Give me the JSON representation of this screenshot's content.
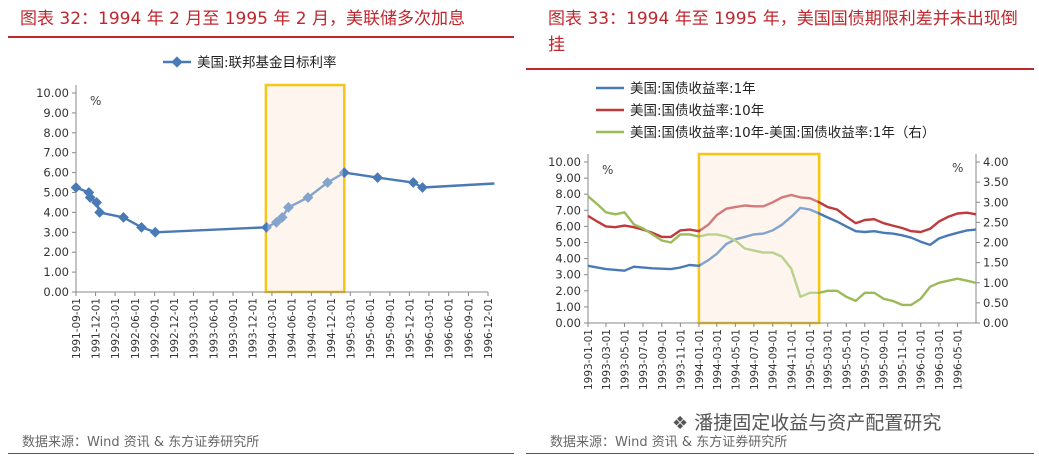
{
  "left_panel": {
    "title": "图表 32：1994 年 2 月至 1995 年 2 月，美联储多次加息",
    "source": "数据来源：Wind 资讯 & 东方证券研究所"
  },
  "right_panel": {
    "title": "图表 33：1994 年至 1995 年，美国国债期限利差并未出现倒挂",
    "source": "数据来源：Wind 资讯 & 东方证券研究所",
    "watermark": "潘捷固定收益与资产配置研究"
  },
  "chart_data": [
    {
      "type": "line",
      "unit_label": "%",
      "ylim": [
        0,
        10
      ],
      "yticks": [
        "0.00",
        "1.00",
        "2.00",
        "3.00",
        "4.00",
        "5.00",
        "6.00",
        "7.00",
        "8.00",
        "9.00",
        "10.00"
      ],
      "xticks": [
        "1991-09-01",
        "1991-12-01",
        "1992-03-01",
        "1992-06-01",
        "1992-09-01",
        "1992-12-01",
        "1993-03-01",
        "1993-06-01",
        "1993-09-01",
        "1993-12-01",
        "1994-03-01",
        "1994-06-01",
        "1994-09-01",
        "1994-12-01",
        "1995-03-01",
        "1995-06-01",
        "1995-09-01",
        "1995-12-01",
        "1996-03-01",
        "1996-06-01",
        "1996-09-01",
        "1996-12-01"
      ],
      "x_start": "1991-09-01",
      "x_end": "1996-12-01",
      "legend_position": "top",
      "grid": false,
      "highlight": {
        "from": "1994-02-01",
        "to": "1995-02-01",
        "color": "#f5c518"
      },
      "series": [
        {
          "name": "美国:联邦基金目标利率",
          "color": "#4a7ab5",
          "points": [
            [
              "1991-09-01",
              5.25
            ],
            [
              "1991-10-31",
              5.0
            ],
            [
              "1991-11-06",
              4.75
            ],
            [
              "1991-12-06",
              4.5
            ],
            [
              "1991-12-20",
              4.0
            ],
            [
              "1992-04-09",
              3.75
            ],
            [
              "1992-07-02",
              3.25
            ],
            [
              "1992-09-04",
              3.0
            ],
            [
              "1994-02-04",
              3.25
            ],
            [
              "1994-03-22",
              3.5
            ],
            [
              "1994-04-18",
              3.75
            ],
            [
              "1994-05-17",
              4.25
            ],
            [
              "1994-08-16",
              4.75
            ],
            [
              "1994-11-15",
              5.5
            ],
            [
              "1995-02-01",
              6.0
            ],
            [
              "1995-07-06",
              5.75
            ],
            [
              "1995-12-19",
              5.5
            ],
            [
              "1996-01-31",
              5.25
            ],
            [
              "1996-12-31",
              5.45
            ]
          ],
          "markers": [
            "1991-09-01",
            "1991-10-31",
            "1991-11-06",
            "1991-12-06",
            "1991-12-20",
            "1992-04-09",
            "1992-07-02",
            "1992-09-04",
            "1994-02-04",
            "1994-03-22",
            "1994-04-18",
            "1994-05-17",
            "1994-08-16",
            "1994-11-15",
            "1995-02-01",
            "1995-07-06",
            "1995-12-19",
            "1996-01-31"
          ]
        }
      ]
    },
    {
      "type": "line",
      "left_unit_label": "%",
      "right_unit_label": "%",
      "ylim": [
        0,
        10
      ],
      "y2lim": [
        0,
        4
      ],
      "yticks": [
        "0.00",
        "1.00",
        "2.00",
        "3.00",
        "4.00",
        "5.00",
        "6.00",
        "7.00",
        "8.00",
        "9.00",
        "10.00"
      ],
      "y2ticks": [
        "0.00",
        "0.50",
        "1.00",
        "1.50",
        "2.00",
        "2.50",
        "3.00",
        "3.50",
        "4.00"
      ],
      "xticks": [
        "1993-01-01",
        "1993-03-01",
        "1993-05-01",
        "1993-07-01",
        "1993-09-01",
        "1993-11-01",
        "1994-01-01",
        "1994-03-01",
        "1994-05-01",
        "1994-07-01",
        "1994-09-01",
        "1994-11-01",
        "1995-01-01",
        "1995-03-01",
        "1995-05-01",
        "1995-07-01",
        "1995-09-01",
        "1995-11-01",
        "1996-01-01",
        "1996-03-01",
        "1996-05-01"
      ],
      "x_start": "1993-01-01",
      "x_end": "1996-07-01",
      "legend_position": "top-left",
      "grid": false,
      "highlight": {
        "from": "1994-01-01",
        "to": "1995-02-01",
        "color": "#f5c518"
      },
      "series": [
        {
          "name": "美国:国债收益率:1年",
          "color": "#4a7ab5",
          "axis": "left",
          "points": [
            [
              "1993-01-01",
              3.55
            ],
            [
              "1993-03-01",
              3.35
            ],
            [
              "1993-05-01",
              3.25
            ],
            [
              "1993-06-01",
              3.5
            ],
            [
              "1993-08-01",
              3.4
            ],
            [
              "1993-10-01",
              3.35
            ],
            [
              "1993-11-01",
              3.45
            ],
            [
              "1993-12-01",
              3.6
            ],
            [
              "1994-01-01",
              3.55
            ],
            [
              "1994-02-01",
              3.9
            ],
            [
              "1994-03-01",
              4.3
            ],
            [
              "1994-04-01",
              4.9
            ],
            [
              "1994-05-01",
              5.2
            ],
            [
              "1994-06-01",
              5.35
            ],
            [
              "1994-07-01",
              5.5
            ],
            [
              "1994-08-01",
              5.55
            ],
            [
              "1994-09-01",
              5.75
            ],
            [
              "1994-10-01",
              6.1
            ],
            [
              "1994-11-01",
              6.6
            ],
            [
              "1994-12-01",
              7.15
            ],
            [
              "1995-01-01",
              7.05
            ],
            [
              "1995-02-01",
              6.8
            ],
            [
              "1995-03-01",
              6.55
            ],
            [
              "1995-04-01",
              6.3
            ],
            [
              "1995-05-01",
              6.0
            ],
            [
              "1995-06-01",
              5.7
            ],
            [
              "1995-07-01",
              5.65
            ],
            [
              "1995-08-01",
              5.7
            ],
            [
              "1995-09-01",
              5.6
            ],
            [
              "1995-10-01",
              5.55
            ],
            [
              "1995-11-01",
              5.45
            ],
            [
              "1995-12-01",
              5.3
            ],
            [
              "1996-01-01",
              5.05
            ],
            [
              "1996-02-01",
              4.85
            ],
            [
              "1996-03-01",
              5.25
            ],
            [
              "1996-04-01",
              5.45
            ],
            [
              "1996-05-01",
              5.6
            ],
            [
              "1996-06-01",
              5.75
            ],
            [
              "1996-07-01",
              5.8
            ]
          ]
        },
        {
          "name": "美国:国债收益率:10年",
          "color": "#c0393b",
          "axis": "left",
          "points": [
            [
              "1993-01-01",
              6.65
            ],
            [
              "1993-02-01",
              6.3
            ],
            [
              "1993-03-01",
              6.0
            ],
            [
              "1993-04-01",
              5.95
            ],
            [
              "1993-05-01",
              6.05
            ],
            [
              "1993-06-01",
              5.95
            ],
            [
              "1993-07-01",
              5.8
            ],
            [
              "1993-08-01",
              5.6
            ],
            [
              "1993-09-01",
              5.35
            ],
            [
              "1993-10-01",
              5.35
            ],
            [
              "1993-11-01",
              5.75
            ],
            [
              "1993-12-01",
              5.8
            ],
            [
              "1994-01-01",
              5.7
            ],
            [
              "1994-02-01",
              6.1
            ],
            [
              "1994-03-01",
              6.7
            ],
            [
              "1994-04-01",
              7.1
            ],
            [
              "1994-05-01",
              7.2
            ],
            [
              "1994-06-01",
              7.3
            ],
            [
              "1994-07-01",
              7.25
            ],
            [
              "1994-08-01",
              7.25
            ],
            [
              "1994-09-01",
              7.5
            ],
            [
              "1994-10-01",
              7.8
            ],
            [
              "1994-11-01",
              7.95
            ],
            [
              "1994-12-01",
              7.8
            ],
            [
              "1995-01-01",
              7.75
            ],
            [
              "1995-02-01",
              7.5
            ],
            [
              "1995-03-01",
              7.2
            ],
            [
              "1995-04-01",
              7.05
            ],
            [
              "1995-05-01",
              6.6
            ],
            [
              "1995-06-01",
              6.2
            ],
            [
              "1995-07-01",
              6.4
            ],
            [
              "1995-08-01",
              6.45
            ],
            [
              "1995-09-01",
              6.2
            ],
            [
              "1995-10-01",
              6.05
            ],
            [
              "1995-11-01",
              5.9
            ],
            [
              "1995-12-01",
              5.7
            ],
            [
              "1996-01-01",
              5.65
            ],
            [
              "1996-02-01",
              5.85
            ],
            [
              "1996-03-01",
              6.3
            ],
            [
              "1996-04-01",
              6.6
            ],
            [
              "1996-05-01",
              6.8
            ],
            [
              "1996-06-01",
              6.85
            ],
            [
              "1996-07-01",
              6.75
            ]
          ]
        },
        {
          "name": "美国:国债收益率:10年-美国:国债收益率:1年（右）",
          "color": "#9bbb59",
          "axis": "right",
          "points": [
            [
              "1993-01-01",
              3.15
            ],
            [
              "1993-02-01",
              2.95
            ],
            [
              "1993-03-01",
              2.75
            ],
            [
              "1993-04-01",
              2.7
            ],
            [
              "1993-05-01",
              2.75
            ],
            [
              "1993-06-01",
              2.45
            ],
            [
              "1993-07-01",
              2.35
            ],
            [
              "1993-08-01",
              2.2
            ],
            [
              "1993-09-01",
              2.05
            ],
            [
              "1993-10-01",
              2.0
            ],
            [
              "1993-11-01",
              2.2
            ],
            [
              "1993-12-01",
              2.2
            ],
            [
              "1994-01-01",
              2.15
            ],
            [
              "1994-02-01",
              2.2
            ],
            [
              "1994-03-01",
              2.2
            ],
            [
              "1994-04-01",
              2.15
            ],
            [
              "1994-05-01",
              2.05
            ],
            [
              "1994-06-01",
              1.85
            ],
            [
              "1994-07-01",
              1.8
            ],
            [
              "1994-08-01",
              1.75
            ],
            [
              "1994-09-01",
              1.75
            ],
            [
              "1994-10-01",
              1.65
            ],
            [
              "1994-11-01",
              1.35
            ],
            [
              "1994-12-01",
              0.65
            ],
            [
              "1995-01-01",
              0.75
            ],
            [
              "1995-02-01",
              0.75
            ],
            [
              "1995-03-01",
              0.8
            ],
            [
              "1995-04-01",
              0.8
            ],
            [
              "1995-05-01",
              0.65
            ],
            [
              "1995-06-01",
              0.55
            ],
            [
              "1995-07-01",
              0.75
            ],
            [
              "1995-08-01",
              0.75
            ],
            [
              "1995-09-01",
              0.6
            ],
            [
              "1995-10-01",
              0.55
            ],
            [
              "1995-11-01",
              0.45
            ],
            [
              "1995-12-01",
              0.45
            ],
            [
              "1996-01-01",
              0.6
            ],
            [
              "1996-02-01",
              0.9
            ],
            [
              "1996-03-01",
              1.0
            ],
            [
              "1996-04-01",
              1.05
            ],
            [
              "1996-05-01",
              1.1
            ],
            [
              "1996-06-01",
              1.05
            ],
            [
              "1996-07-01",
              1.0
            ]
          ]
        }
      ]
    }
  ]
}
